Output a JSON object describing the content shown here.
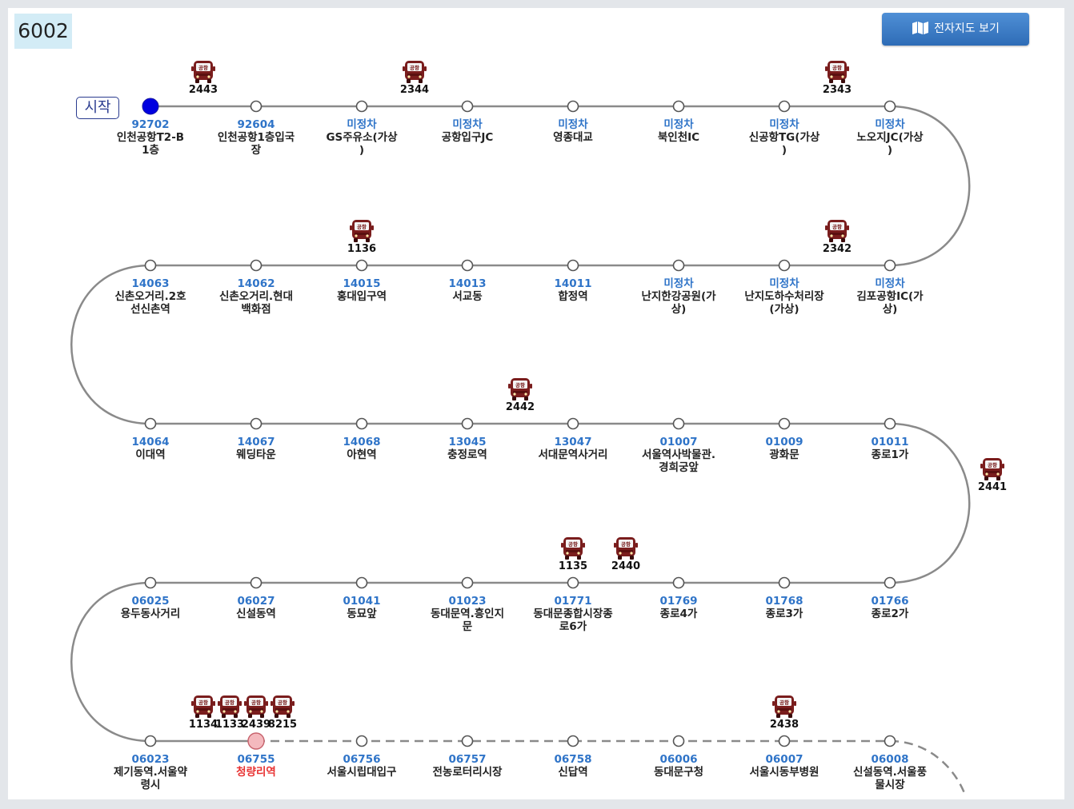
{
  "route_no": "6002",
  "map_button_label": "전자지도 보기",
  "start_label": "시작",
  "bus_badge_text": "공항",
  "colors": {
    "line": "#8a8a8a",
    "stop_id": "#2f74c8",
    "current_stop": "#0000e0",
    "highlight_stop": "#f4b9be",
    "highlight_text": "#e83131",
    "bus_body": "#7a1d1d"
  },
  "stops": [
    {
      "id": "92702",
      "name": "인천공항T2-B\n1층",
      "state": "current"
    },
    {
      "id": "92604",
      "name": "인천공항1층입국\n장"
    },
    {
      "id": "미정차",
      "name": "GS주유소(가상\n)"
    },
    {
      "id": "미정차",
      "name": "공항입구JC"
    },
    {
      "id": "미정차",
      "name": "영종대교"
    },
    {
      "id": "미정차",
      "name": "북인천IC"
    },
    {
      "id": "미정차",
      "name": "신공항TG(가상\n)"
    },
    {
      "id": "미정차",
      "name": "노오지JC(가상\n)"
    },
    {
      "id": "미정차",
      "name": "김포공항IC(가\n상)"
    },
    {
      "id": "미정차",
      "name": "난지도하수처리장\n(가상)"
    },
    {
      "id": "미정차",
      "name": "난지한강공원(가\n상)"
    },
    {
      "id": "14011",
      "name": "합정역"
    },
    {
      "id": "14013",
      "name": "서교동"
    },
    {
      "id": "14015",
      "name": "홍대입구역"
    },
    {
      "id": "14062",
      "name": "신촌오거리.현대\n백화점"
    },
    {
      "id": "14063",
      "name": "신촌오거리.2호\n선신촌역"
    },
    {
      "id": "14064",
      "name": "이대역"
    },
    {
      "id": "14067",
      "name": "웨딩타운"
    },
    {
      "id": "14068",
      "name": "아현역"
    },
    {
      "id": "13045",
      "name": "충정로역"
    },
    {
      "id": "13047",
      "name": "서대문역사거리"
    },
    {
      "id": "01007",
      "name": "서울역사박물관.\n경희궁앞"
    },
    {
      "id": "01009",
      "name": "광화문"
    },
    {
      "id": "01011",
      "name": "종로1가"
    },
    {
      "id": "01766",
      "name": "종로2가"
    },
    {
      "id": "01768",
      "name": "종로3가"
    },
    {
      "id": "01769",
      "name": "종로4가"
    },
    {
      "id": "01771",
      "name": "동대문종합시장종\n로6가"
    },
    {
      "id": "01023",
      "name": "동대문역.흥인지\n문"
    },
    {
      "id": "01041",
      "name": "동묘앞"
    },
    {
      "id": "06027",
      "name": "신설동역"
    },
    {
      "id": "06025",
      "name": "용두동사거리"
    },
    {
      "id": "06023",
      "name": "제기동역.서울약\n령시"
    },
    {
      "id": "06755",
      "name": "청량리역",
      "state": "highlight"
    },
    {
      "id": "06756",
      "name": "서울시립대입구"
    },
    {
      "id": "06757",
      "name": "전농로터리시장"
    },
    {
      "id": "06758",
      "name": "신답역"
    },
    {
      "id": "06006",
      "name": "동대문구청"
    },
    {
      "id": "06007",
      "name": "서울시동부병원"
    },
    {
      "id": "06008",
      "name": "신설동역.서울풍\n물시장"
    }
  ],
  "buses": [
    {
      "no": "2443",
      "stop": 0,
      "offset": 0.5
    },
    {
      "no": "2344",
      "stop": 2,
      "offset": 0.5
    },
    {
      "no": "2343",
      "stop": 6,
      "offset": 0.5
    },
    {
      "no": "2342",
      "stop": 8,
      "offset": 0.5
    },
    {
      "no": "1136",
      "stop": 13,
      "offset": 0
    },
    {
      "no": "2442",
      "stop": 19,
      "offset": 0.5
    },
    {
      "no": "2441",
      "stop": 23,
      "offset": 0.5
    },
    {
      "no": "1135",
      "stop": 27,
      "offset": 0
    },
    {
      "no": "2440",
      "stop": 27,
      "offset": -0.5
    },
    {
      "no": "1134",
      "stop": 32,
      "offset": 0.5
    },
    {
      "no": "1133",
      "stop": 32,
      "offset": 0.75
    },
    {
      "no": "2439",
      "stop": 32,
      "offset": 1
    },
    {
      "no": "8215",
      "stop": 32,
      "offset": 1.25
    },
    {
      "no": "2438",
      "stop": 38,
      "offset": 0
    }
  ]
}
